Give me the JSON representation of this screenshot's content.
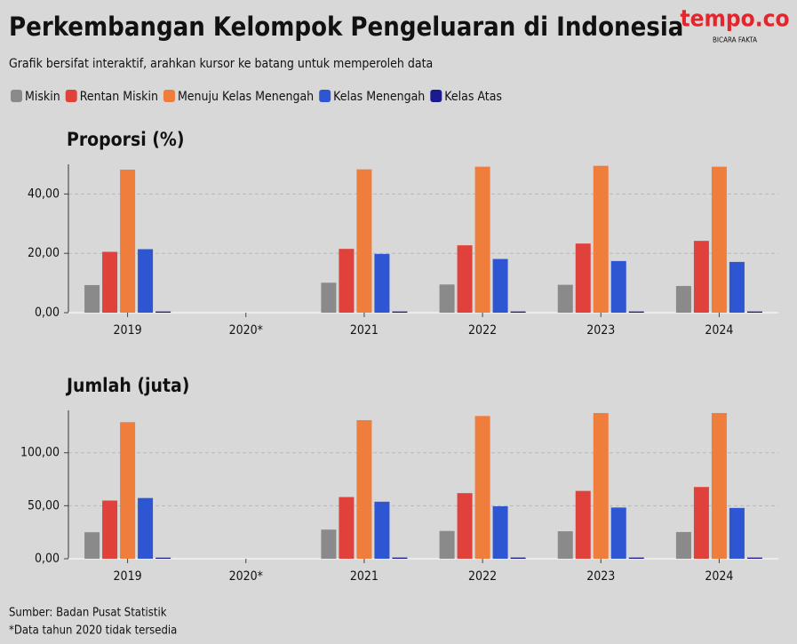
{
  "title": "Perkembangan Kelompok Pengeluaran di Indonesia",
  "subtitle": "Grafik bersifat interaktif, arahkan kursor ke batang untuk memperoleh data",
  "logo": {
    "name": "tempo.co",
    "tagline": "BICARA FAKTA"
  },
  "source": "Sumber: Badan Pusat Statistik",
  "note": "*Data tahun 2020 tidak tersedia",
  "chart_data": [
    {
      "type": "bar",
      "title": "Proporsi (%)",
      "categories": [
        "2019",
        "2020*",
        "2021",
        "2022",
        "2023",
        "2024"
      ],
      "series": [
        {
          "name": "Miskin",
          "color": "#8a8a8a",
          "values": [
            9.3,
            null,
            10.1,
            9.5,
            9.4,
            9.0
          ]
        },
        {
          "name": "Rentan Miskin",
          "color": "#e0413a",
          "values": [
            20.5,
            null,
            21.5,
            22.7,
            23.3,
            24.2
          ]
        },
        {
          "name": "Menuju Kelas Menengah",
          "color": "#ef7d3c",
          "values": [
            48.2,
            null,
            48.3,
            49.2,
            49.5,
            49.2
          ]
        },
        {
          "name": "Kelas Menengah",
          "color": "#2f56d2",
          "values": [
            21.4,
            null,
            19.8,
            18.1,
            17.4,
            17.1
          ]
        },
        {
          "name": "Kelas Atas",
          "color": "#1b1b8f",
          "values": [
            0.4,
            null,
            0.4,
            0.4,
            0.4,
            0.4
          ]
        }
      ],
      "ylim": [
        0,
        50
      ],
      "yticks": [
        {
          "value": 0,
          "label": "0,00"
        },
        {
          "value": 20,
          "label": "20,00"
        },
        {
          "value": 40,
          "label": "40,00"
        }
      ],
      "grid": true
    },
    {
      "type": "bar",
      "title": "Jumlah (juta)",
      "categories": [
        "2019",
        "2020*",
        "2021",
        "2022",
        "2023",
        "2024"
      ],
      "series": [
        {
          "name": "Miskin",
          "color": "#8a8a8a",
          "values": [
            25.0,
            null,
            27.5,
            26.2,
            25.9,
            25.2
          ]
        },
        {
          "name": "Rentan Miskin",
          "color": "#e0413a",
          "values": [
            54.9,
            null,
            58.2,
            61.9,
            64.0,
            67.7
          ]
        },
        {
          "name": "Menuju Kelas Menengah",
          "color": "#ef7d3c",
          "values": [
            128.9,
            null,
            130.8,
            134.7,
            137.5,
            137.5
          ]
        },
        {
          "name": "Kelas Menengah",
          "color": "#2f56d2",
          "values": [
            57.3,
            null,
            53.8,
            49.5,
            48.3,
            47.9
          ]
        },
        {
          "name": "Kelas Atas",
          "color": "#1b1b8f",
          "values": [
            1.0,
            null,
            1.1,
            1.1,
            1.1,
            1.1
          ]
        }
      ],
      "ylim": [
        0,
        140
      ],
      "yticks": [
        {
          "value": 0,
          "label": "0,00"
        },
        {
          "value": 50,
          "label": "50,00"
        },
        {
          "value": 100,
          "label": "100,00"
        }
      ],
      "grid": true
    }
  ]
}
